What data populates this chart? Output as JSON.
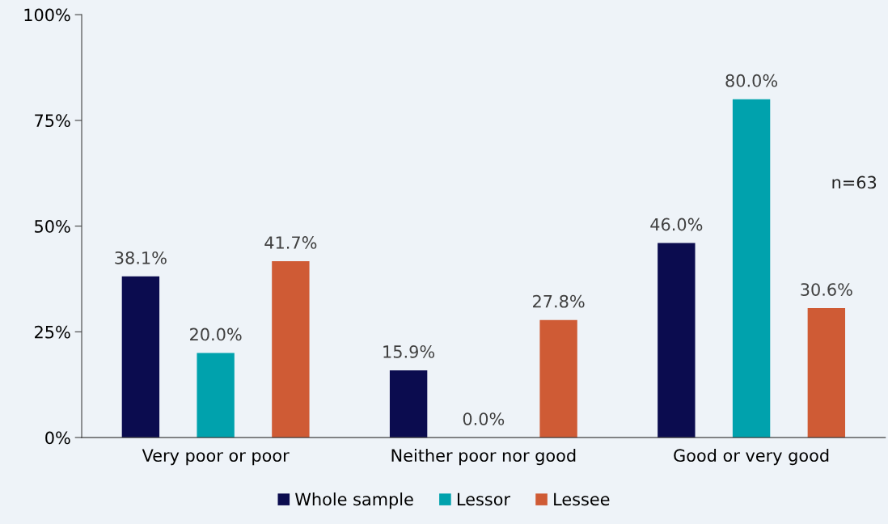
{
  "chart_data": {
    "type": "bar",
    "categories": [
      "Very poor or poor",
      "Neither poor nor good",
      "Good or very good"
    ],
    "series": [
      {
        "name": "Whole sample",
        "color": "#0b0c4f",
        "values": [
          38.1,
          15.9,
          46.0
        ],
        "value_labels": [
          "38.1%",
          "15.9%",
          "46.0%"
        ]
      },
      {
        "name": "Lessor",
        "color": "#00a2ad",
        "values": [
          20.0,
          0.0,
          80.0
        ],
        "value_labels": [
          "20.0%",
          "0.0%",
          "80.0%"
        ]
      },
      {
        "name": "Lessee",
        "color": "#cf5b35",
        "values": [
          41.7,
          27.8,
          30.6
        ],
        "value_labels": [
          "41.7%",
          "27.8%",
          "30.6%"
        ]
      }
    ],
    "ylim": [
      0,
      100
    ],
    "yticks": [
      {
        "value": 0,
        "label": "0%"
      },
      {
        "value": 25,
        "label": "25%"
      },
      {
        "value": 50,
        "label": "50%"
      },
      {
        "value": 75,
        "label": "75%"
      },
      {
        "value": 100,
        "label": "100%"
      }
    ],
    "annotations": [
      "n=63"
    ],
    "grid": false,
    "legend": "bottom"
  }
}
